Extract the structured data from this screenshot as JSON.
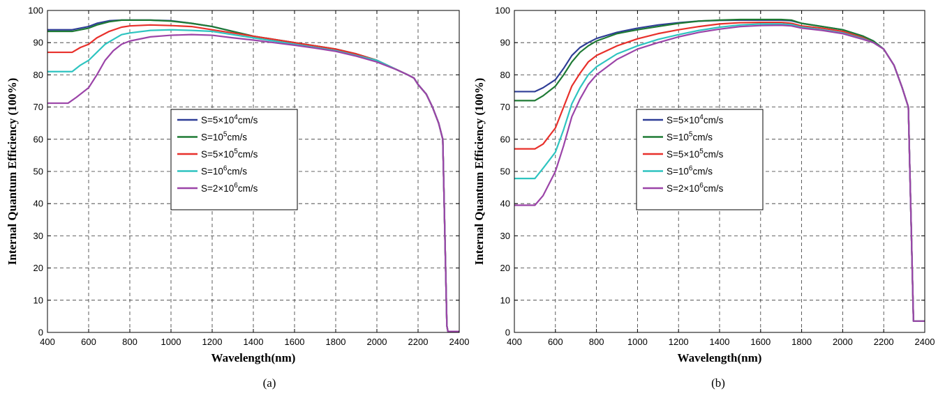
{
  "chart_data": [
    {
      "type": "line",
      "panel_label": "(a)",
      "xlabel": "Wavelength(nm)",
      "ylabel": "Internal Quantum Efficiency (100%)",
      "xlim": [
        400,
        2400
      ],
      "ylim": [
        0,
        100
      ],
      "xticks": [
        400,
        600,
        800,
        1000,
        1200,
        1400,
        1600,
        1800,
        2000,
        2200,
        2400
      ],
      "yticks": [
        0,
        10,
        20,
        30,
        40,
        50,
        60,
        70,
        80,
        90,
        100
      ],
      "grid": true,
      "legend_position": "center",
      "series": [
        {
          "legend": {
            "prefix": "S=5×10",
            "exp": "4",
            "suffix": "cm/s"
          },
          "color": "#2e3d96",
          "x": [
            400,
            520,
            600,
            640,
            700,
            760,
            800,
            900,
            1000,
            1100,
            1200,
            1300,
            1400,
            1500,
            1600,
            1700,
            1800,
            1900,
            2000,
            2100,
            2150,
            2180,
            2200,
            2240,
            2270,
            2300,
            2320,
            2340,
            2345,
            2400
          ],
          "y": [
            94,
            94,
            95,
            96,
            96.8,
            97,
            97,
            97,
            96.8,
            96,
            95,
            93.5,
            92,
            91,
            90,
            89,
            88,
            86.5,
            84.5,
            81.5,
            80,
            79,
            77,
            74,
            70,
            65,
            60,
            2,
            0.3,
            0.3
          ]
        },
        {
          "legend": {
            "prefix": "S=10",
            "exp": "5",
            "suffix": "cm/s"
          },
          "color": "#1e7a34",
          "x": [
            400,
            520,
            600,
            640,
            700,
            760,
            800,
            900,
            1000,
            1100,
            1200,
            1300,
            1400,
            1500,
            1600,
            1700,
            1800,
            1900,
            2000,
            2100,
            2150,
            2180,
            2200,
            2240,
            2270,
            2300,
            2320,
            2340,
            2345,
            2400
          ],
          "y": [
            93.5,
            93.5,
            94.5,
            95.5,
            96.5,
            97,
            97,
            97,
            96.7,
            96,
            95,
            93.5,
            92,
            91,
            90,
            89,
            88,
            86.5,
            84.5,
            81.5,
            80,
            79,
            77,
            74,
            70,
            65,
            60,
            2,
            0.3,
            0.3
          ]
        },
        {
          "legend": {
            "prefix": "S=5×10",
            "exp": "5",
            "suffix": "cm/s"
          },
          "color": "#e8302b",
          "x": [
            400,
            520,
            560,
            600,
            640,
            700,
            760,
            800,
            900,
            1000,
            1100,
            1200,
            1300,
            1400,
            1500,
            1600,
            1700,
            1800,
            1900,
            2000,
            2100,
            2150,
            2180,
            2200,
            2240,
            2270,
            2300,
            2320,
            2340,
            2345,
            2400
          ],
          "y": [
            87,
            87,
            88.5,
            89.5,
            91.5,
            93.5,
            94.8,
            95.2,
            95.5,
            95.3,
            95,
            94,
            93,
            92,
            91,
            90,
            89,
            88,
            86.5,
            84.5,
            81.5,
            80,
            79,
            77,
            74,
            70,
            65,
            60,
            2,
            0.3,
            0.3
          ]
        },
        {
          "legend": {
            "prefix": "S=10",
            "exp": "6",
            "suffix": "cm/s"
          },
          "color": "#2ec4c0",
          "x": [
            400,
            520,
            560,
            600,
            640,
            680,
            720,
            760,
            800,
            900,
            1000,
            1100,
            1200,
            1300,
            1400,
            1500,
            1600,
            1700,
            1800,
            1900,
            2000,
            2100,
            2150,
            2180,
            2200,
            2240,
            2270,
            2300,
            2320,
            2340,
            2345,
            2400
          ],
          "y": [
            81,
            81,
            83,
            84.5,
            87,
            89.5,
            91,
            92.5,
            93,
            93.8,
            94,
            93.8,
            93.5,
            92.5,
            91.5,
            90.5,
            89.5,
            88.5,
            87.5,
            86,
            84.5,
            81.5,
            80,
            79,
            77,
            74,
            70,
            65,
            60,
            2,
            0.3,
            0.3
          ]
        },
        {
          "legend": {
            "prefix": "S=2×10",
            "exp": "6",
            "suffix": "cm/s"
          },
          "color": "#9b44a8",
          "x": [
            400,
            500,
            540,
            600,
            640,
            680,
            720,
            760,
            800,
            900,
            1000,
            1100,
            1200,
            1300,
            1400,
            1500,
            1600,
            1700,
            1800,
            1900,
            2000,
            2100,
            2150,
            2180,
            2200,
            2240,
            2270,
            2300,
            2320,
            2340,
            2345,
            2400
          ],
          "y": [
            71.2,
            71.2,
            73,
            76,
            80,
            84.5,
            87.5,
            89.5,
            90.5,
            91.8,
            92.3,
            92.5,
            92.3,
            91.5,
            90.8,
            90,
            89.2,
            88.3,
            87.3,
            85.8,
            84,
            81.5,
            80,
            79,
            77,
            74,
            70,
            65,
            60,
            2,
            0.3,
            0.3
          ]
        }
      ]
    },
    {
      "type": "line",
      "panel_label": "(b)",
      "xlabel": "Wavelength(nm)",
      "ylabel": "Internal Quantum Efficiency (100%)",
      "xlim": [
        400,
        2400
      ],
      "ylim": [
        0,
        100
      ],
      "xticks": [
        400,
        600,
        800,
        1000,
        1200,
        1400,
        1600,
        1800,
        2000,
        2200,
        2400
      ],
      "yticks": [
        0,
        10,
        20,
        30,
        40,
        50,
        60,
        70,
        80,
        90,
        100
      ],
      "grid": true,
      "legend_position": "center",
      "series": [
        {
          "legend": {
            "prefix": "S=5×10",
            "exp": "4",
            "suffix": "cm/s"
          },
          "color": "#2e3d96",
          "x": [
            400,
            500,
            540,
            600,
            640,
            680,
            720,
            760,
            800,
            900,
            1000,
            1100,
            1200,
            1300,
            1400,
            1500,
            1600,
            1700,
            1750,
            1800,
            1900,
            2000,
            2100,
            2150,
            2200,
            2250,
            2290,
            2320,
            2345,
            2400
          ],
          "y": [
            74.8,
            74.8,
            76,
            78.5,
            82,
            86,
            88.5,
            90,
            91.3,
            93.2,
            94.5,
            95.5,
            96.2,
            96.7,
            96.9,
            97,
            97,
            97,
            96.8,
            96,
            95,
            94,
            92,
            90.5,
            88,
            83,
            76,
            70,
            3.5,
            3.5
          ]
        },
        {
          "legend": {
            "prefix": "S=10",
            "exp": "5",
            "suffix": "cm/s"
          },
          "color": "#1e7a34",
          "x": [
            400,
            500,
            540,
            600,
            640,
            680,
            720,
            760,
            800,
            900,
            1000,
            1100,
            1200,
            1300,
            1400,
            1500,
            1600,
            1700,
            1750,
            1800,
            1900,
            2000,
            2100,
            2150,
            2200,
            2250,
            2290,
            2320,
            2345,
            2400
          ],
          "y": [
            72,
            72,
            73.5,
            76.5,
            80,
            84,
            87,
            89,
            90.5,
            92.8,
            94,
            95,
            96,
            96.7,
            97,
            97.2,
            97.2,
            97.2,
            97,
            96,
            95,
            94,
            92,
            90.5,
            88,
            83,
            76,
            70,
            3.5,
            3.5
          ]
        },
        {
          "legend": {
            "prefix": "S=5×10",
            "exp": "5",
            "suffix": "cm/s"
          },
          "color": "#e8302b",
          "x": [
            400,
            500,
            540,
            600,
            640,
            680,
            720,
            760,
            800,
            900,
            1000,
            1100,
            1200,
            1300,
            1400,
            1500,
            1600,
            1700,
            1750,
            1800,
            1900,
            2000,
            2100,
            2150,
            2200,
            2250,
            2290,
            2320,
            2345,
            2400
          ],
          "y": [
            57,
            57,
            58.5,
            63.5,
            70,
            76.5,
            80.5,
            84,
            86,
            89,
            91.2,
            92.8,
            94,
            95,
            95.8,
            96.2,
            96.3,
            96.3,
            96,
            95.2,
            94.5,
            93.5,
            91.5,
            90,
            88,
            83,
            76,
            70,
            3.5,
            3.5
          ]
        },
        {
          "legend": {
            "prefix": "S=10",
            "exp": "6",
            "suffix": "cm/s"
          },
          "color": "#2ec4c0",
          "x": [
            400,
            500,
            540,
            600,
            640,
            680,
            720,
            760,
            800,
            900,
            1000,
            1100,
            1200,
            1300,
            1400,
            1500,
            1600,
            1700,
            1750,
            1800,
            1900,
            2000,
            2100,
            2150,
            2200,
            2250,
            2290,
            2320,
            2345,
            2400
          ],
          "y": [
            47.8,
            47.8,
            51,
            56,
            63,
            71,
            76,
            80,
            82.5,
            86.5,
            89,
            91,
            92.5,
            93.8,
            94.8,
            95.5,
            95.8,
            95.8,
            95.6,
            94.8,
            94,
            93,
            91.2,
            90,
            88,
            83,
            76,
            70,
            3.5,
            3.5
          ]
        },
        {
          "legend": {
            "prefix": "S=2×10",
            "exp": "6",
            "suffix": "cm/s"
          },
          "color": "#9b44a8",
          "x": [
            400,
            500,
            540,
            600,
            640,
            680,
            720,
            760,
            800,
            900,
            1000,
            1100,
            1200,
            1300,
            1400,
            1500,
            1600,
            1700,
            1750,
            1800,
            1900,
            2000,
            2100,
            2150,
            2200,
            2250,
            2290,
            2320,
            2345,
            2400
          ],
          "y": [
            39.5,
            39.5,
            42.5,
            50,
            58,
            67,
            72.5,
            77,
            80,
            84.8,
            88,
            90,
            91.8,
            93.2,
            94.2,
            95,
            95.3,
            95.4,
            95.2,
            94.5,
            93.8,
            92.8,
            91,
            90,
            88,
            83,
            76,
            70,
            3.5,
            3.5
          ]
        }
      ]
    }
  ]
}
